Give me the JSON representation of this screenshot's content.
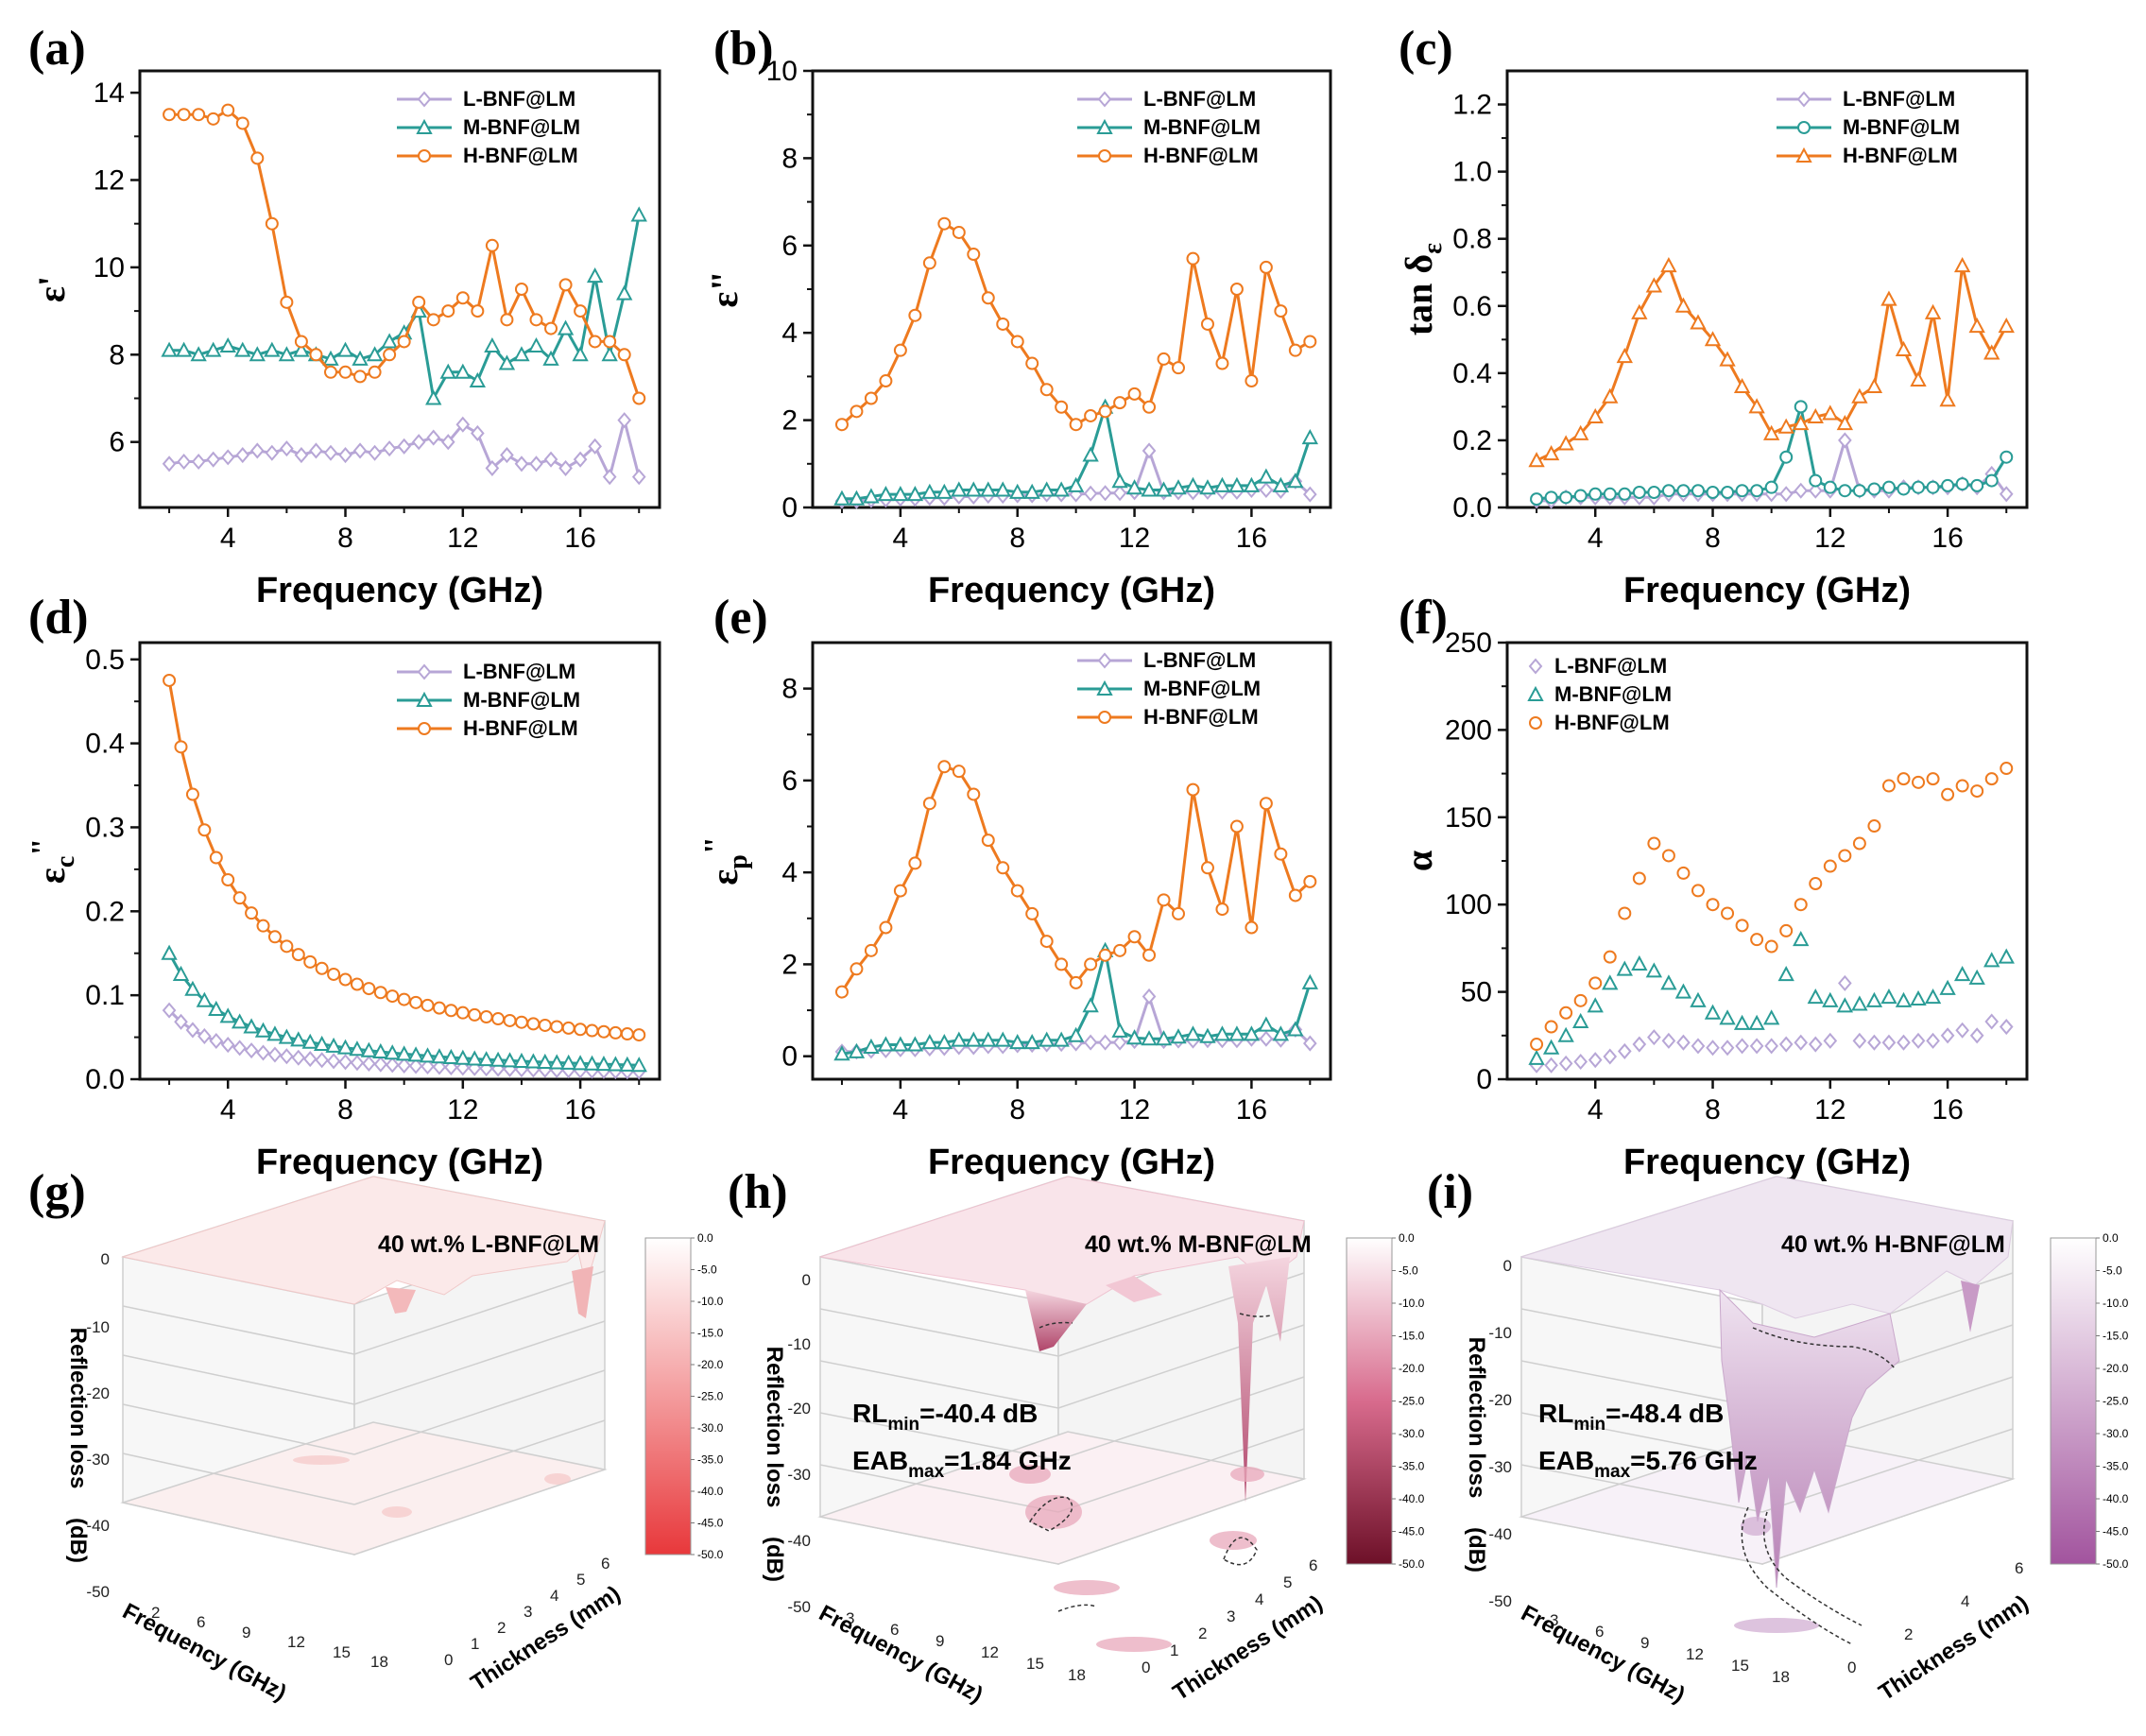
{
  "figure": {
    "colors": {
      "L": "#b7a6d6",
      "M": "#2a9c96",
      "H": "#ee7a1f"
    }
  },
  "chart_data": [
    {
      "id": "a",
      "type": "line",
      "label": "(a)",
      "xlabel": "Frequency (GHz)",
      "ylabel": "ε'",
      "xlim": [
        1,
        18.7
      ],
      "ylim": [
        4.5,
        14.5
      ],
      "xticks": [
        4,
        8,
        12,
        16
      ],
      "yticks": [
        6,
        8,
        10,
        12,
        14
      ],
      "x": [
        2,
        2.5,
        3,
        3.5,
        4,
        4.5,
        5,
        5.5,
        6,
        6.5,
        7,
        7.5,
        8,
        8.5,
        9,
        9.5,
        10,
        10.5,
        11,
        11.5,
        12,
        12.5,
        13,
        13.5,
        14,
        14.5,
        15,
        15.5,
        16,
        16.5,
        17,
        17.5,
        18
      ],
      "series": [
        {
          "name": "L-BNF@LM",
          "marker": "diamond",
          "values": [
            5.5,
            5.55,
            5.55,
            5.6,
            5.65,
            5.7,
            5.8,
            5.75,
            5.85,
            5.7,
            5.8,
            5.75,
            5.7,
            5.8,
            5.75,
            5.85,
            5.9,
            6.0,
            6.1,
            6.0,
            6.4,
            6.2,
            5.4,
            5.7,
            5.5,
            5.5,
            5.6,
            5.4,
            5.6,
            5.9,
            5.2,
            6.5,
            5.2
          ]
        },
        {
          "name": "M-BNF@LM",
          "marker": "triangle",
          "values": [
            8.1,
            8.1,
            8.0,
            8.1,
            8.2,
            8.1,
            8.0,
            8.1,
            8.0,
            8.1,
            8.0,
            7.9,
            8.1,
            7.9,
            8.0,
            8.3,
            8.5,
            9.0,
            7.0,
            7.6,
            7.6,
            7.4,
            8.2,
            7.8,
            8.0,
            8.2,
            7.9,
            8.6,
            8.0,
            9.8,
            8.0,
            9.4,
            11.2
          ]
        },
        {
          "name": "H-BNF@LM",
          "marker": "circle",
          "values": [
            13.5,
            13.5,
            13.5,
            13.4,
            13.6,
            13.3,
            12.5,
            11.0,
            9.2,
            8.3,
            8.0,
            7.6,
            7.6,
            7.5,
            7.6,
            8.0,
            8.3,
            9.2,
            8.8,
            9.0,
            9.3,
            9.0,
            10.5,
            8.8,
            9.5,
            8.8,
            8.6,
            9.6,
            9.0,
            8.3,
            8.3,
            8.0,
            7.0
          ]
        }
      ]
    },
    {
      "id": "b",
      "type": "line",
      "label": "(b)",
      "xlabel": "Frequency (GHz)",
      "ylabel": "ε\"",
      "xlim": [
        1,
        18.7
      ],
      "ylim": [
        0,
        10
      ],
      "xticks": [
        4,
        8,
        12,
        16
      ],
      "yticks": [
        0,
        2,
        4,
        6,
        8,
        10
      ],
      "x": [
        2,
        2.5,
        3,
        3.5,
        4,
        4.5,
        5,
        5.5,
        6,
        6.5,
        7,
        7.5,
        8,
        8.5,
        9,
        9.5,
        10,
        10.5,
        11,
        11.5,
        12,
        12.5,
        13,
        13.5,
        14,
        14.5,
        15,
        15.5,
        16,
        16.5,
        17,
        17.5,
        18
      ],
      "series": [
        {
          "name": "L-BNF@LM",
          "marker": "diamond",
          "values": [
            0.15,
            0.15,
            0.17,
            0.18,
            0.2,
            0.2,
            0.22,
            0.22,
            0.25,
            0.25,
            0.27,
            0.27,
            0.28,
            0.28,
            0.3,
            0.3,
            0.3,
            0.32,
            0.33,
            0.33,
            0.35,
            1.3,
            0.35,
            0.35,
            0.35,
            0.36,
            0.36,
            0.36,
            0.4,
            0.4,
            0.38,
            0.6,
            0.3
          ]
        },
        {
          "name": "M-BNF@LM",
          "marker": "triangle",
          "values": [
            0.2,
            0.2,
            0.25,
            0.3,
            0.3,
            0.3,
            0.35,
            0.35,
            0.4,
            0.4,
            0.4,
            0.4,
            0.35,
            0.35,
            0.4,
            0.4,
            0.5,
            1.2,
            2.3,
            0.6,
            0.45,
            0.4,
            0.4,
            0.45,
            0.5,
            0.45,
            0.5,
            0.5,
            0.5,
            0.7,
            0.5,
            0.6,
            1.6
          ]
        },
        {
          "name": "H-BNF@LM",
          "marker": "circle",
          "values": [
            1.9,
            2.2,
            2.5,
            2.9,
            3.6,
            4.4,
            5.6,
            6.5,
            6.3,
            5.8,
            4.8,
            4.2,
            3.8,
            3.3,
            2.7,
            2.3,
            1.9,
            2.1,
            2.2,
            2.4,
            2.6,
            2.3,
            3.4,
            3.2,
            5.7,
            4.2,
            3.3,
            5.0,
            2.9,
            5.5,
            4.5,
            3.6,
            3.8
          ]
        }
      ]
    },
    {
      "id": "c",
      "type": "line",
      "label": "(c)",
      "xlabel": "Frequency (GHz)",
      "ylabel": "tan δ",
      "ylabel_sub": "ε",
      "xlim": [
        1,
        18.7
      ],
      "ylim": [
        0,
        1.3
      ],
      "xticks": [
        4,
        8,
        12,
        16
      ],
      "yticks": [
        0.0,
        0.2,
        0.4,
        0.6,
        0.8,
        1.0,
        1.2
      ],
      "ytick_labels": [
        "0.0",
        "0.2",
        "0.4",
        "0.6",
        "0.8",
        "1.0",
        "1.2"
      ],
      "x": [
        2,
        2.5,
        3,
        3.5,
        4,
        4.5,
        5,
        5.5,
        6,
        6.5,
        7,
        7.5,
        8,
        8.5,
        9,
        9.5,
        10,
        10.5,
        11,
        11.5,
        12,
        12.5,
        13,
        13.5,
        14,
        14.5,
        15,
        15.5,
        16,
        16.5,
        17,
        17.5,
        18
      ],
      "series": [
        {
          "name": "L-BNF@LM",
          "marker": "diamond",
          "values": [
            0.02,
            0.02,
            0.03,
            0.03,
            0.03,
            0.03,
            0.03,
            0.03,
            0.03,
            0.04,
            0.04,
            0.04,
            0.04,
            0.04,
            0.04,
            0.04,
            0.04,
            0.04,
            0.05,
            0.05,
            0.05,
            0.2,
            0.05,
            0.05,
            0.05,
            0.06,
            0.06,
            0.06,
            0.06,
            0.07,
            0.06,
            0.1,
            0.04
          ]
        },
        {
          "name": "M-BNF@LM",
          "marker": "circle",
          "values": [
            0.025,
            0.03,
            0.03,
            0.035,
            0.04,
            0.04,
            0.04,
            0.045,
            0.045,
            0.05,
            0.05,
            0.05,
            0.045,
            0.045,
            0.05,
            0.05,
            0.06,
            0.15,
            0.3,
            0.08,
            0.06,
            0.05,
            0.05,
            0.055,
            0.06,
            0.055,
            0.06,
            0.06,
            0.065,
            0.07,
            0.065,
            0.08,
            0.15
          ]
        },
        {
          "name": "H-BNF@LM",
          "marker": "triangle",
          "values": [
            0.14,
            0.16,
            0.19,
            0.22,
            0.27,
            0.33,
            0.45,
            0.58,
            0.66,
            0.72,
            0.6,
            0.55,
            0.5,
            0.44,
            0.36,
            0.3,
            0.22,
            0.24,
            0.25,
            0.27,
            0.28,
            0.25,
            0.33,
            0.36,
            0.62,
            0.47,
            0.38,
            0.58,
            0.32,
            0.72,
            0.54,
            0.46,
            0.54
          ]
        }
      ]
    },
    {
      "id": "d",
      "type": "line",
      "label": "(d)",
      "xlabel": "Frequency (GHz)",
      "ylabel": "ε",
      "ylabel_sub": "c",
      "ylabel_sup": "\"",
      "xlim": [
        1,
        18.7
      ],
      "ylim": [
        0,
        0.52
      ],
      "xticks": [
        4,
        8,
        12,
        16
      ],
      "yticks": [
        0.0,
        0.1,
        0.2,
        0.3,
        0.4,
        0.5
      ],
      "ytick_labels": [
        "0.0",
        "0.1",
        "0.2",
        "0.3",
        "0.4",
        "0.5"
      ],
      "model": "inverse-frequency",
      "ref_values": {
        "L-BNF@LM": 0.082,
        "M-BNF@LM": 0.15,
        "H-BNF@LM": 0.475
      },
      "series": [
        {
          "name": "L-BNF@LM",
          "marker": "diamond"
        },
        {
          "name": "M-BNF@LM",
          "marker": "triangle"
        },
        {
          "name": "H-BNF@LM",
          "marker": "circle"
        }
      ]
    },
    {
      "id": "e",
      "type": "line",
      "label": "(e)",
      "xlabel": "Frequency (GHz)",
      "ylabel": "ε",
      "ylabel_sub": "p",
      "ylabel_sup": "\"",
      "xlim": [
        1,
        18.7
      ],
      "ylim": [
        -0.5,
        9
      ],
      "xticks": [
        4,
        8,
        12,
        16
      ],
      "yticks": [
        0,
        2,
        4,
        6,
        8
      ],
      "x": [
        2,
        2.5,
        3,
        3.5,
        4,
        4.5,
        5,
        5.5,
        6,
        6.5,
        7,
        7.5,
        8,
        8.5,
        9,
        9.5,
        10,
        10.5,
        11,
        11.5,
        12,
        12.5,
        13,
        13.5,
        14,
        14.5,
        15,
        15.5,
        16,
        16.5,
        17,
        17.5,
        18
      ],
      "series": [
        {
          "name": "L-BNF@LM",
          "marker": "diamond",
          "values": [
            0.1,
            0.1,
            0.12,
            0.13,
            0.15,
            0.15,
            0.17,
            0.18,
            0.2,
            0.2,
            0.22,
            0.22,
            0.24,
            0.25,
            0.26,
            0.27,
            0.28,
            0.3,
            0.3,
            0.3,
            0.33,
            1.3,
            0.33,
            0.34,
            0.34,
            0.35,
            0.35,
            0.35,
            0.38,
            0.38,
            0.36,
            0.58,
            0.28
          ]
        },
        {
          "name": "M-BNF@LM",
          "marker": "triangle",
          "values": [
            0.05,
            0.1,
            0.2,
            0.25,
            0.25,
            0.25,
            0.3,
            0.3,
            0.35,
            0.35,
            0.35,
            0.35,
            0.3,
            0.3,
            0.35,
            0.35,
            0.45,
            1.1,
            2.3,
            0.55,
            0.4,
            0.38,
            0.38,
            0.42,
            0.48,
            0.43,
            0.48,
            0.48,
            0.48,
            0.68,
            0.48,
            0.58,
            1.6
          ]
        },
        {
          "name": "H-BNF@LM",
          "marker": "circle",
          "values": [
            1.4,
            1.9,
            2.3,
            2.8,
            3.6,
            4.2,
            5.5,
            6.3,
            6.2,
            5.7,
            4.7,
            4.1,
            3.6,
            3.1,
            2.5,
            2.0,
            1.6,
            2.0,
            2.2,
            2.3,
            2.6,
            2.2,
            3.4,
            3.1,
            5.8,
            4.1,
            3.2,
            5.0,
            2.8,
            5.5,
            4.4,
            3.5,
            3.8
          ]
        }
      ]
    },
    {
      "id": "f",
      "type": "scatter",
      "label": "(f)",
      "xlabel": "Frequency (GHz)",
      "ylabel": "α",
      "xlim": [
        1,
        18.7
      ],
      "ylim": [
        0,
        250
      ],
      "xticks": [
        4,
        8,
        12,
        16
      ],
      "yticks": [
        0,
        50,
        100,
        150,
        200,
        250
      ],
      "x": [
        2,
        2.5,
        3,
        3.5,
        4,
        4.5,
        5,
        5.5,
        6,
        6.5,
        7,
        7.5,
        8,
        8.5,
        9,
        9.5,
        10,
        10.5,
        11,
        11.5,
        12,
        12.5,
        13,
        13.5,
        14,
        14.5,
        15,
        15.5,
        16,
        16.5,
        17,
        17.5,
        18
      ],
      "series": [
        {
          "name": "L-BNF@LM",
          "marker": "diamond",
          "values": [
            8,
            8,
            9,
            10,
            11,
            13,
            16,
            20,
            24,
            22,
            21,
            19,
            18,
            18,
            19,
            19,
            19,
            20,
            21,
            20,
            22,
            55,
            22,
            21,
            21,
            21,
            22,
            22,
            25,
            28,
            25,
            33,
            30
          ]
        },
        {
          "name": "M-BNF@LM",
          "marker": "triangle",
          "values": [
            12,
            18,
            25,
            33,
            42,
            55,
            63,
            66,
            62,
            55,
            50,
            45,
            38,
            35,
            32,
            32,
            35,
            60,
            80,
            47,
            45,
            42,
            43,
            45,
            47,
            45,
            46,
            47,
            52,
            60,
            58,
            68,
            70
          ]
        },
        {
          "name": "H-BNF@LM",
          "marker": "circle",
          "values": [
            20,
            30,
            38,
            45,
            55,
            70,
            95,
            115,
            135,
            128,
            118,
            108,
            100,
            95,
            88,
            80,
            76,
            85,
            100,
            112,
            122,
            128,
            135,
            145,
            168,
            172,
            170,
            172,
            163,
            168,
            165,
            172,
            178
          ]
        }
      ]
    },
    {
      "id": "g",
      "type": "surface-3d",
      "label": "(g)",
      "title": "40 wt.% L-BNF@LM",
      "zlabel": "Reflection loss",
      "zunit": "(dB)",
      "xlabel": "Frequency (GHz)",
      "ylabel": "Thickness (mm)",
      "zticks": [
        "0",
        "-10",
        "-20",
        "-30",
        "-40",
        "-50"
      ],
      "xticks": [
        "2",
        "6",
        "9",
        "12",
        "15",
        "18"
      ],
      "yticks": [
        "0",
        "1",
        "2",
        "3",
        "4",
        "5",
        "6"
      ],
      "colorbar": [
        "0.0",
        "-5.0",
        "-10.0",
        "-15.0",
        "-20.0",
        "-25.0",
        "-30.0",
        "-35.0",
        "-40.0",
        "-45.0",
        "-50.0"
      ],
      "color_low": "#e8383b",
      "RL_min": null,
      "EAB_max": null
    },
    {
      "id": "h",
      "type": "surface-3d",
      "label": "(h)",
      "title": "40 wt.% M-BNF@LM",
      "zlabel": "Reflection loss",
      "zunit": "(dB)",
      "xlabel": "Frequency (GHz)",
      "ylabel": "Thickness (mm)",
      "zticks": [
        "0",
        "-10",
        "-20",
        "-30",
        "-40",
        "-50"
      ],
      "xticks": [
        "3",
        "6",
        "9",
        "12",
        "15",
        "18"
      ],
      "yticks": [
        "0",
        "1",
        "2",
        "3",
        "4",
        "5",
        "6"
      ],
      "colorbar": [
        "0.0",
        "-5.0",
        "-10.0",
        "-15.0",
        "-20.0",
        "-25.0",
        "-30.0",
        "-35.0",
        "-40.0",
        "-45.0",
        "-50.0"
      ],
      "color_low": "#7a1330",
      "rl_prefix": "RL",
      "rl_sub": "min",
      "rl_value": "=-40.4 dB",
      "eab_prefix": "EAB",
      "eab_sub": "max",
      "eab_value": "=1.84 GHz"
    },
    {
      "id": "i",
      "type": "surface-3d",
      "label": "(i)",
      "title": "40 wt.% H-BNF@LM",
      "zlabel": "Reflection loss",
      "zunit": "(dB)",
      "xlabel": "Frequency (GHz)",
      "ylabel": "Thickness (mm)",
      "zticks": [
        "0",
        "-10",
        "-20",
        "-30",
        "-40",
        "-50"
      ],
      "xticks": [
        "3",
        "6",
        "9",
        "12",
        "15",
        "18"
      ],
      "yticks": [
        "0",
        "2",
        "4",
        "6"
      ],
      "colorbar": [
        "0.0",
        "-5.0",
        "-10.0",
        "-15.0",
        "-20.0",
        "-25.0",
        "-30.0",
        "-35.0",
        "-40.0",
        "-45.0",
        "-50.0"
      ],
      "color_low": "#a2549e",
      "rl_prefix": "RL",
      "rl_sub": "min",
      "rl_value": "=-48.4 dB",
      "eab_prefix": "EAB",
      "eab_sub": "max",
      "eab_value": "=5.76 GHz"
    }
  ]
}
